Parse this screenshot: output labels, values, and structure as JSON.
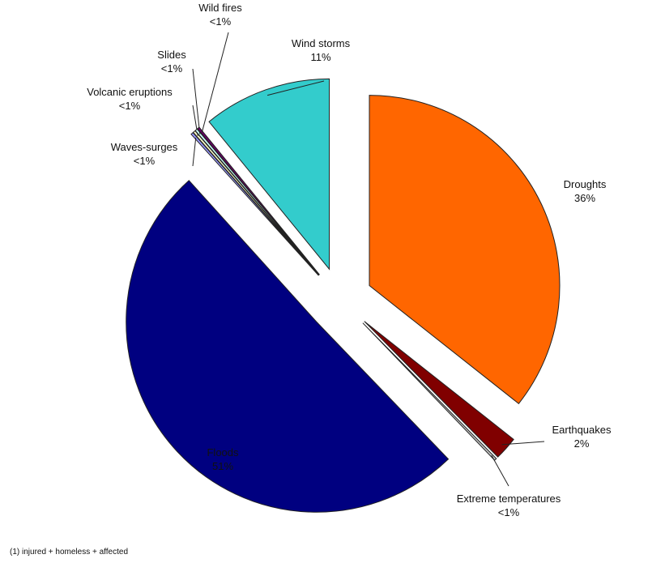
{
  "chart_data": {
    "type": "pie",
    "categories": [
      "Droughts",
      "Earthquakes",
      "Extreme temperatures",
      "Floods",
      "Waves-surges",
      "Volcanic eruptions",
      "Slides",
      "Wild fires",
      "Wind storms"
    ],
    "values": [
      36,
      2,
      0.2,
      51,
      0.2,
      0.2,
      0.2,
      0.2,
      11
    ],
    "value_labels": [
      "36%",
      "2%",
      "<1%",
      "51%",
      "<1%",
      "<1%",
      "<1%",
      "<1%",
      "11%"
    ],
    "colors": [
      "#ff6600",
      "#800000",
      "#c0c0c0",
      "#000080",
      "#9999ff",
      "#ffffcc",
      "#ccffff",
      "#660066",
      "#33cccc"
    ],
    "footnote": "(1) injured + homeless + affected"
  }
}
